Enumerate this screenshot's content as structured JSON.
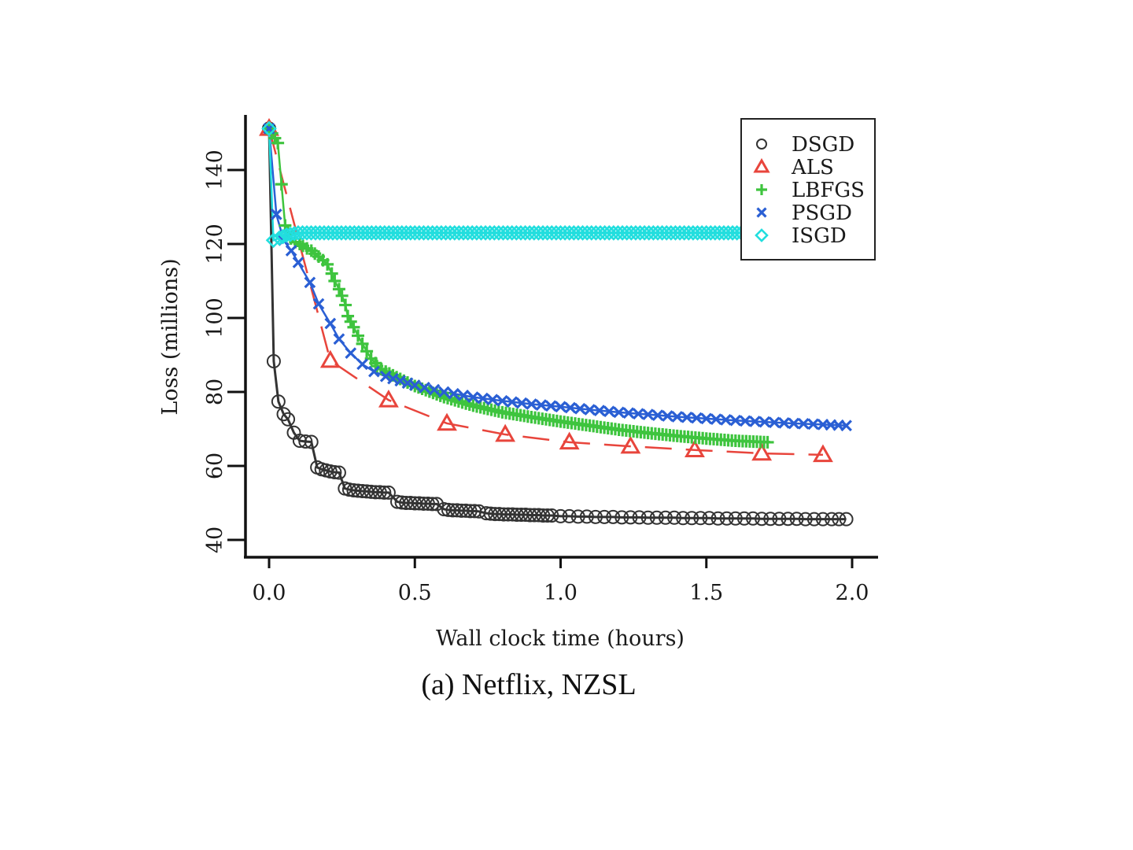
{
  "caption": "(a) Netflix, NZSL",
  "chart_data": {
    "type": "line",
    "title": "",
    "caption": "(a) Netflix, NZSL",
    "xlabel": "Wall clock time (hours)",
    "ylabel": "Loss (millions)",
    "xlim": [
      -0.08,
      2.08
    ],
    "ylim": [
      36,
      155
    ],
    "xticks": [
      0.0,
      0.5,
      1.0,
      1.5,
      2.0
    ],
    "xtick_labels": [
      "0.0",
      "0.5",
      "1.0",
      "1.5",
      "2.0"
    ],
    "yticks": [
      40,
      60,
      80,
      100,
      120,
      140
    ],
    "ytick_labels": [
      "40",
      "60",
      "80",
      "100",
      "120",
      "140"
    ],
    "grid": false,
    "legend_position": "top-right",
    "series": [
      {
        "name": "DSGD",
        "marker": "circle",
        "color": "#333333",
        "line": "solid",
        "x": [
          0.0,
          0.016,
          0.032,
          0.05,
          0.065,
          0.085,
          0.105,
          0.125,
          0.145,
          0.165,
          0.18,
          0.195,
          0.21,
          0.225,
          0.24,
          0.26,
          0.275,
          0.29,
          0.305,
          0.32,
          0.335,
          0.35,
          0.365,
          0.38,
          0.395,
          0.41,
          0.44,
          0.455,
          0.47,
          0.485,
          0.5,
          0.515,
          0.53,
          0.545,
          0.56,
          0.575,
          0.6,
          0.615,
          0.63,
          0.645,
          0.66,
          0.675,
          0.69,
          0.705,
          0.72,
          0.745,
          0.76,
          0.775,
          0.79,
          0.805,
          0.82,
          0.835,
          0.85,
          0.865,
          0.88,
          0.895,
          0.91,
          0.925,
          0.94,
          0.955,
          0.97,
          1.0,
          1.03,
          1.06,
          1.09,
          1.12,
          1.15,
          1.18,
          1.21,
          1.24,
          1.27,
          1.3,
          1.33,
          1.36,
          1.39,
          1.42,
          1.45,
          1.48,
          1.51,
          1.54,
          1.57,
          1.6,
          1.63,
          1.66,
          1.69,
          1.72,
          1.75,
          1.78,
          1.81,
          1.84,
          1.87,
          1.9,
          1.93,
          1.955,
          1.98
        ],
        "y": [
          151.2,
          88.3,
          77.4,
          74.0,
          72.6,
          69.0,
          66.8,
          66.6,
          66.5,
          59.6,
          59.1,
          58.8,
          58.5,
          58.3,
          58.2,
          53.9,
          53.6,
          53.4,
          53.3,
          53.2,
          53.1,
          53.0,
          52.9,
          52.9,
          52.8,
          52.8,
          50.3,
          50.1,
          50.0,
          50.0,
          49.9,
          49.9,
          49.8,
          49.8,
          49.7,
          49.7,
          48.3,
          48.1,
          48.0,
          48.0,
          47.9,
          47.9,
          47.8,
          47.8,
          47.7,
          47.2,
          47.1,
          47.0,
          47.0,
          46.9,
          46.9,
          46.9,
          46.8,
          46.8,
          46.8,
          46.7,
          46.7,
          46.7,
          46.6,
          46.6,
          46.6,
          46.4,
          46.4,
          46.3,
          46.3,
          46.2,
          46.2,
          46.2,
          46.1,
          46.1,
          46.1,
          46.0,
          46.0,
          46.0,
          46.0,
          45.9,
          45.9,
          45.9,
          45.9,
          45.8,
          45.8,
          45.8,
          45.8,
          45.8,
          45.7,
          45.7,
          45.7,
          45.7,
          45.7,
          45.6,
          45.6,
          45.6,
          45.6,
          45.6,
          45.6
        ]
      },
      {
        "name": "ALS",
        "marker": "triangle",
        "color": "#e8453c",
        "line": "dashed",
        "x": [
          0.0,
          0.21,
          0.41,
          0.61,
          0.81,
          1.03,
          1.24,
          1.46,
          1.69,
          1.9
        ],
        "y": [
          151.2,
          88.5,
          77.8,
          71.5,
          68.5,
          66.4,
          65.3,
          64.3,
          63.4,
          63.0
        ]
      },
      {
        "name": "LBFGS",
        "marker": "plus",
        "color": "#3ec43e",
        "line": "solid",
        "x": [
          0.0,
          0.03,
          0.055,
          0.075,
          0.09,
          0.105,
          0.116,
          0.13,
          0.145,
          0.157,
          0.17,
          0.185,
          0.2,
          0.215,
          0.225,
          0.24,
          0.25,
          0.262,
          0.27,
          0.28,
          0.29,
          0.305,
          0.32,
          0.335,
          0.35,
          0.365,
          0.37,
          0.385,
          0.4,
          0.45,
          0.5,
          0.6,
          0.7,
          0.8,
          0.9,
          1.0,
          1.1,
          1.2,
          1.3,
          1.4,
          1.5,
          1.6,
          1.71
        ],
        "y": [
          151.2,
          147.3,
          125.0,
          121.5,
          120.5,
          120.0,
          119.5,
          118.8,
          118.2,
          117.4,
          116.6,
          115.6,
          114.5,
          112.0,
          110.0,
          107.8,
          106.0,
          103.5,
          100.5,
          99.0,
          97.5,
          95.2,
          93.0,
          91.0,
          89.0,
          87.8,
          87.0,
          86.2,
          85.5,
          83.5,
          81.6,
          78.6,
          76.3,
          74.5,
          73.2,
          72.0,
          70.9,
          69.8,
          68.9,
          68.1,
          67.4,
          66.8,
          66.4
        ],
        "dense_step": 0.012
      },
      {
        "name": "PSGD",
        "marker": "x",
        "color": "#2a5fd4",
        "line": "solid",
        "x": [
          0.0,
          0.025,
          0.05,
          0.076,
          0.1,
          0.14,
          0.17,
          0.21,
          0.24,
          0.28,
          0.32,
          0.36,
          0.4,
          0.45,
          0.5,
          0.6,
          0.7,
          0.8,
          0.9,
          1.0,
          1.1,
          1.2,
          1.3,
          1.4,
          1.5,
          1.6,
          1.7,
          1.8,
          1.9,
          1.98
        ],
        "y": [
          151.2,
          128.0,
          121.0,
          118.2,
          115.0,
          109.6,
          103.8,
          98.5,
          94.3,
          90.5,
          87.5,
          85.5,
          84.2,
          83.0,
          81.8,
          80.0,
          78.6,
          77.6,
          76.7,
          76.0,
          75.2,
          74.5,
          73.9,
          73.3,
          72.8,
          72.3,
          71.9,
          71.5,
          71.2,
          70.9
        ],
        "dense_step": 0.03
      },
      {
        "name": "ISGD",
        "marker": "diamond",
        "color": "#22dede",
        "line": "solid",
        "x": [
          0.0,
          0.015,
          0.035,
          0.06,
          0.1,
          0.5,
          1.0,
          1.5,
          1.65
        ],
        "y": [
          151.2,
          121.0,
          121.6,
          122.4,
          123.0,
          123.0,
          123.0,
          123.0,
          123.0
        ],
        "dense_step": 0.015
      }
    ]
  }
}
